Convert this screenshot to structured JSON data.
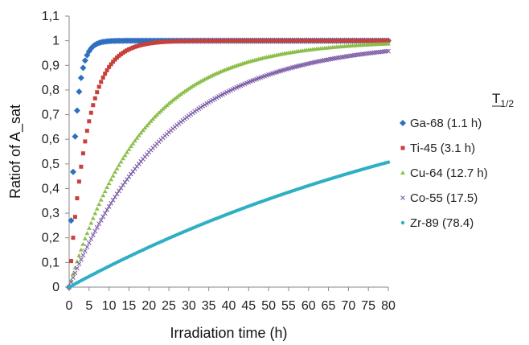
{
  "chart_data": {
    "type": "scatter",
    "title": "",
    "xlabel": "Irradiation time (h)",
    "ylabel": "Ratiof of A_sat",
    "xlim": [
      0,
      80
    ],
    "ylim": [
      0,
      1.1
    ],
    "x_ticks": [
      0,
      5,
      10,
      15,
      20,
      25,
      30,
      35,
      40,
      45,
      50,
      55,
      60,
      65,
      70,
      75,
      80
    ],
    "x_tick_labels": [
      "0",
      "5",
      "10",
      "15",
      "20",
      "25",
      "30",
      "35",
      "40",
      "45",
      "50",
      "55",
      "60",
      "65",
      "70",
      "75",
      "80"
    ],
    "y_ticks": [
      0,
      0.1,
      0.2,
      0.3,
      0.4,
      0.5,
      0.6,
      0.7,
      0.8,
      0.9,
      1,
      1.1
    ],
    "y_tick_labels": [
      "0",
      "0,1",
      "0,2",
      "0,3",
      "0,4",
      "0,5",
      "0,6",
      "0,7",
      "0,8",
      "0,9",
      "1",
      "1,1"
    ],
    "grid": false,
    "legend_position": "right",
    "legend_title_main": "T",
    "legend_title_sub": "1/2",
    "x_step": 0.5,
    "series": [
      {
        "name": "Ga-68 (1.1 h)",
        "half_life_h": 1.1,
        "color": "#2f6fbf",
        "marker": "diamond"
      },
      {
        "name": "Ti-45 (3.1 h)",
        "half_life_h": 3.1,
        "color": "#c8403c",
        "marker": "square"
      },
      {
        "name": "Cu-64 (12.7 h)",
        "half_life_h": 12.7,
        "color": "#8cbf4a",
        "marker": "triangle"
      },
      {
        "name": "Co-55 (17.5)",
        "half_life_h": 17.5,
        "color": "#7b5aa6",
        "marker": "x"
      },
      {
        "name": "Zr-89 (78.4)",
        "half_life_h": 78.4,
        "color": "#2eafc4",
        "marker": "star"
      }
    ]
  }
}
